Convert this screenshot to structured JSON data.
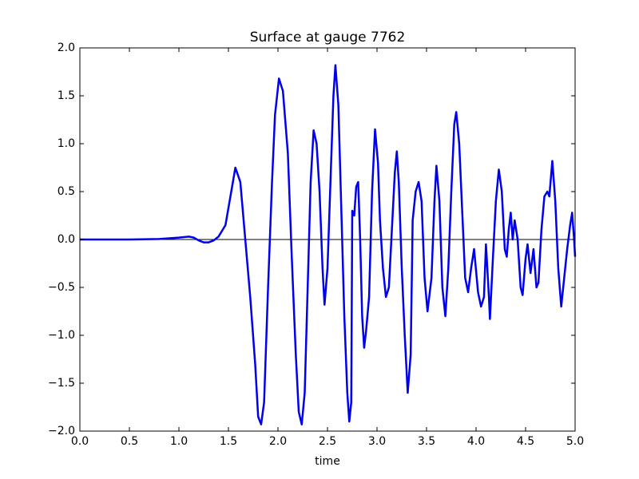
{
  "chart_data": {
    "type": "line",
    "title": "Surface at gauge 7762",
    "xlabel": "time",
    "x": [
      0,
      0.5,
      0.8,
      1.0,
      1.1,
      1.15,
      1.2,
      1.25,
      1.3,
      1.35,
      1.4,
      1.47,
      1.52,
      1.57,
      1.62,
      1.67,
      1.72,
      1.77,
      1.8,
      1.83,
      1.86,
      1.9,
      1.94,
      1.97,
      2.01,
      2.05,
      2.1,
      2.14,
      2.18,
      2.21,
      2.24,
      2.27,
      2.3,
      2.33,
      2.36,
      2.39,
      2.42,
      2.45,
      2.47,
      2.5,
      2.53,
      2.56,
      2.58,
      2.61,
      2.64,
      2.67,
      2.7,
      2.72,
      2.74,
      2.75,
      2.77,
      2.79,
      2.81,
      2.83,
      2.85,
      2.87,
      2.89,
      2.92,
      2.95,
      2.98,
      3.01,
      3.03,
      3.06,
      3.09,
      3.12,
      3.15,
      3.18,
      3.2,
      3.22,
      3.25,
      3.28,
      3.31,
      3.34,
      3.36,
      3.39,
      3.42,
      3.45,
      3.48,
      3.51,
      3.55,
      3.58,
      3.6,
      3.63,
      3.66,
      3.69,
      3.72,
      3.75,
      3.78,
      3.8,
      3.83,
      3.86,
      3.89,
      3.92,
      3.95,
      3.98,
      4.02,
      4.05,
      4.08,
      4.1,
      4.13,
      4.14,
      4.17,
      4.2,
      4.23,
      4.26,
      4.29,
      4.31,
      4.33,
      4.35,
      4.37,
      4.39,
      4.42,
      4.45,
      4.47,
      4.5,
      4.52,
      4.55,
      4.58,
      4.61,
      4.63,
      4.66,
      4.69,
      4.72,
      4.74,
      4.77,
      4.8,
      4.83,
      4.86,
      4.89,
      4.92,
      4.95,
      4.97,
      4.99,
      5.0
    ],
    "series": [
      {
        "color": "#0000ee",
        "values": [
          0,
          0,
          0.005,
          0.02,
          0.03,
          0.02,
          -0.01,
          -0.03,
          -0.03,
          -0.01,
          0.03,
          0.15,
          0.45,
          0.75,
          0.6,
          0.0,
          -0.6,
          -1.3,
          -1.85,
          -1.93,
          -1.7,
          -0.5,
          0.6,
          1.3,
          1.68,
          1.55,
          0.9,
          -0.2,
          -1.2,
          -1.8,
          -1.93,
          -1.6,
          -0.5,
          0.6,
          1.14,
          1.0,
          0.5,
          -0.3,
          -0.68,
          -0.3,
          0.6,
          1.5,
          1.82,
          1.4,
          0.3,
          -0.8,
          -1.6,
          -1.9,
          -1.7,
          0.3,
          0.25,
          0.55,
          0.6,
          0.0,
          -0.8,
          -1.13,
          -0.95,
          -0.6,
          0.5,
          1.15,
          0.8,
          0.2,
          -0.3,
          -0.6,
          -0.5,
          0.1,
          0.7,
          0.92,
          0.6,
          -0.3,
          -1.0,
          -1.6,
          -1.2,
          0.2,
          0.5,
          0.6,
          0.4,
          -0.4,
          -0.75,
          -0.4,
          0.4,
          0.77,
          0.4,
          -0.5,
          -0.8,
          -0.3,
          0.5,
          1.2,
          1.33,
          1.0,
          0.3,
          -0.4,
          -0.55,
          -0.3,
          -0.1,
          -0.55,
          -0.7,
          -0.6,
          -0.05,
          -0.6,
          -0.83,
          -0.2,
          0.4,
          0.73,
          0.5,
          -0.1,
          -0.18,
          0.1,
          0.28,
          0.0,
          0.2,
          0.0,
          -0.5,
          -0.58,
          -0.2,
          -0.05,
          -0.35,
          -0.1,
          -0.5,
          -0.45,
          0.1,
          0.45,
          0.5,
          0.45,
          0.82,
          0.4,
          -0.3,
          -0.7,
          -0.4,
          -0.1,
          0.15,
          0.28,
          0.0,
          -0.18
        ]
      }
    ],
    "hline": 0,
    "xlim": [
      0,
      5
    ],
    "ylim": [
      -2,
      2
    ],
    "xticks": [
      {
        "value": 0,
        "label": "0.0"
      },
      0.5,
      {
        "value": 1,
        "label": "1.0"
      },
      1.5,
      {
        "value": 2,
        "label": "2.0"
      },
      2.5,
      {
        "value": 3,
        "label": "3.0"
      },
      3.5,
      {
        "value": 4,
        "label": "4.0"
      },
      4.5,
      {
        "value": 5,
        "label": "5.0"
      }
    ],
    "yticks": [
      {
        "value": -2,
        "label": "−2.0"
      },
      {
        "value": -1.5,
        "label": "−1.5"
      },
      {
        "value": -1,
        "label": "−1.0"
      },
      {
        "value": -0.5,
        "label": "−0.5"
      },
      {
        "value": 0,
        "label": "0.0"
      },
      0.5,
      {
        "value": 1,
        "label": "1.0"
      },
      1.5,
      {
        "value": 2,
        "label": "2.0"
      }
    ],
    "grid": false
  }
}
